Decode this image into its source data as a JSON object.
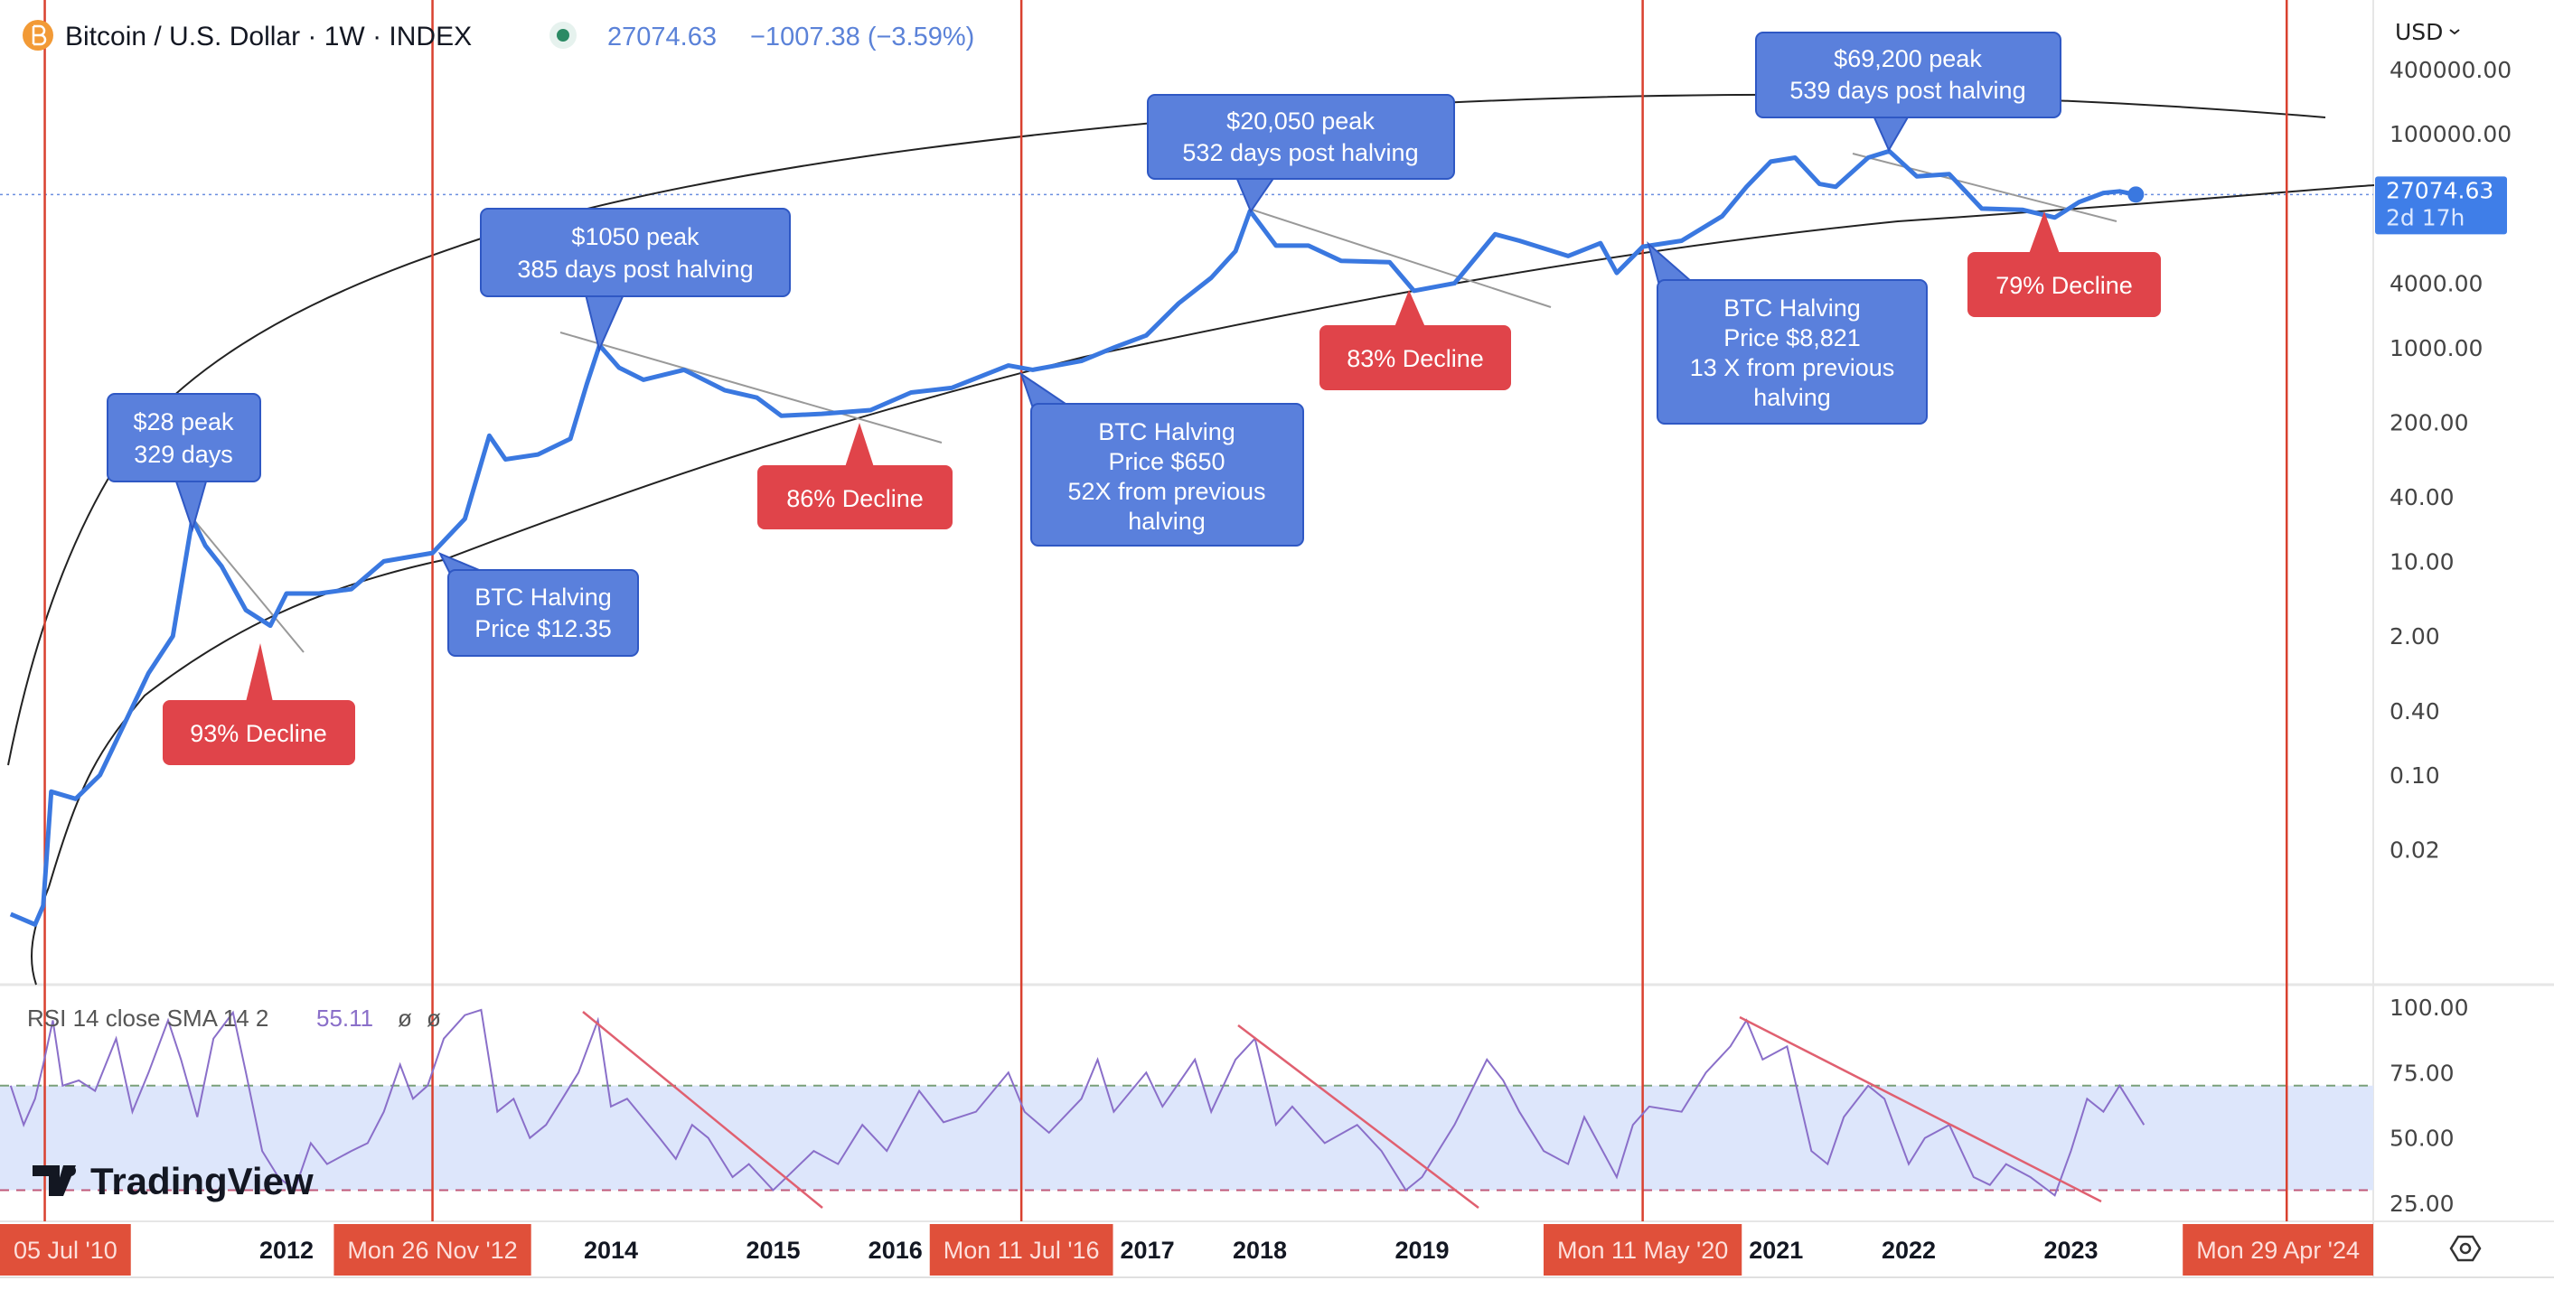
{
  "header": {
    "title": "Bitcoin / U.S. Dollar · 1W · INDEX",
    "last_price": "27074.63",
    "change": "−1007.38 (−3.59%)",
    "currency": "USD"
  },
  "price_tag": {
    "price": "27074.63",
    "countdown": "2d 17h"
  },
  "rsi_legend": {
    "label": "RSI 14 close SMA 14 2",
    "value": "55.11",
    "extra1": "ø",
    "extra2": "ø"
  },
  "logo": "TradingView",
  "colors": {
    "price_line": "#3a78e0",
    "annotation_blue": "#5a80dc",
    "annotation_red": "#e0444a",
    "halving_line": "#d9412f",
    "rsi_line": "#8a6fc9",
    "rsi_band": "#dde6fb"
  },
  "annotations": [
    {
      "type": "peak",
      "lines": [
        "$28 peak",
        "329 days"
      ]
    },
    {
      "type": "decline",
      "lines": [
        "93% Decline"
      ]
    },
    {
      "type": "halving",
      "lines": [
        "BTC Halving",
        "Price $12.35"
      ]
    },
    {
      "type": "peak",
      "lines": [
        "$1050 peak",
        "385 days post halving"
      ]
    },
    {
      "type": "decline",
      "lines": [
        "86% Decline"
      ]
    },
    {
      "type": "halving",
      "lines": [
        "BTC Halving",
        "Price $650",
        "52X from previous",
        "halving"
      ]
    },
    {
      "type": "peak",
      "lines": [
        "$20,050 peak",
        "532 days post halving"
      ]
    },
    {
      "type": "decline",
      "lines": [
        "83% Decline"
      ]
    },
    {
      "type": "halving",
      "lines": [
        "BTC Halving",
        "Price $8,821",
        "13 X from previous",
        "halving"
      ]
    },
    {
      "type": "peak",
      "lines": [
        "$69,200 peak",
        "539 days post halving"
      ]
    },
    {
      "type": "decline",
      "lines": [
        "79% Decline"
      ]
    }
  ],
  "chart_data": {
    "type": "line",
    "title": "Bitcoin / U.S. Dollar · 1W · INDEX",
    "yscale": "log",
    "ylim": [
      0.004,
      400000
    ],
    "y_ticks": [
      {
        "v": 400000,
        "label": "400000.00"
      },
      {
        "v": 100000,
        "label": "100000.00"
      },
      {
        "v": 4000,
        "label": "4000.00"
      },
      {
        "v": 1000,
        "label": "1000.00"
      },
      {
        "v": 200,
        "label": "200.00"
      },
      {
        "v": 40,
        "label": "40.00"
      },
      {
        "v": 10,
        "label": "10.00"
      },
      {
        "v": 2,
        "label": "2.00"
      },
      {
        "v": 0.4,
        "label": "0.40"
      },
      {
        "v": 0.1,
        "label": "0.10"
      },
      {
        "v": 0.02,
        "label": "0.02"
      }
    ],
    "x_ticks": [
      {
        "v": 2012,
        "label": "2012"
      },
      {
        "v": 2014,
        "label": "2014"
      },
      {
        "v": 2015,
        "label": "2015"
      },
      {
        "v": 2016,
        "label": "2016"
      },
      {
        "v": 2017,
        "label": "2017"
      },
      {
        "v": 2018,
        "label": "2018"
      },
      {
        "v": 2019,
        "label": "2019"
      },
      {
        "v": 2021,
        "label": "2021"
      },
      {
        "v": 2022,
        "label": "2022"
      },
      {
        "v": 2023,
        "label": "2023"
      }
    ],
    "halvings": [
      {
        "v": 2010.51,
        "label": "05 Jul '10"
      },
      {
        "v": 2012.9,
        "label": "Mon 26 Nov '12"
      },
      {
        "v": 2016.53,
        "label": "Mon 11 Jul '16"
      },
      {
        "v": 2020.36,
        "label": "Mon 11 May '20"
      },
      {
        "v": 2024.33,
        "label": "Mon 29 Apr '24"
      }
    ],
    "series": [
      {
        "name": "BTCUSD",
        "points": [
          [
            2010.3,
            0.005
          ],
          [
            2010.45,
            0.004
          ],
          [
            2010.5,
            0.006
          ],
          [
            2010.55,
            0.07
          ],
          [
            2010.7,
            0.06
          ],
          [
            2010.85,
            0.1
          ],
          [
            2011.0,
            0.3
          ],
          [
            2011.15,
            0.9
          ],
          [
            2011.3,
            2
          ],
          [
            2011.42,
            25
          ],
          [
            2011.5,
            14
          ],
          [
            2011.6,
            9
          ],
          [
            2011.75,
            3.5
          ],
          [
            2011.9,
            2.5
          ],
          [
            2012.0,
            5
          ],
          [
            2012.2,
            5
          ],
          [
            2012.4,
            5.5
          ],
          [
            2012.6,
            10
          ],
          [
            2012.9,
            12
          ],
          [
            2013.1,
            25
          ],
          [
            2013.25,
            150
          ],
          [
            2013.35,
            90
          ],
          [
            2013.55,
            100
          ],
          [
            2013.75,
            140
          ],
          [
            2013.85,
            450
          ],
          [
            2013.93,
            1050
          ],
          [
            2014.05,
            650
          ],
          [
            2014.2,
            500
          ],
          [
            2014.45,
            620
          ],
          [
            2014.7,
            400
          ],
          [
            2014.9,
            340
          ],
          [
            2015.05,
            230
          ],
          [
            2015.3,
            240
          ],
          [
            2015.6,
            260
          ],
          [
            2015.85,
            380
          ],
          [
            2016.1,
            420
          ],
          [
            2016.45,
            680
          ],
          [
            2016.6,
            620
          ],
          [
            2016.9,
            750
          ],
          [
            2017.1,
            1000
          ],
          [
            2017.3,
            1300
          ],
          [
            2017.5,
            2600
          ],
          [
            2017.7,
            4500
          ],
          [
            2017.85,
            8000
          ],
          [
            2017.94,
            19000
          ],
          [
            2018.1,
            9000
          ],
          [
            2018.3,
            9000
          ],
          [
            2018.5,
            6500
          ],
          [
            2018.8,
            6300
          ],
          [
            2018.95,
            3400
          ],
          [
            2019.2,
            4000
          ],
          [
            2019.45,
            11500
          ],
          [
            2019.6,
            10000
          ],
          [
            2019.9,
            7200
          ],
          [
            2020.1,
            9500
          ],
          [
            2020.2,
            5000
          ],
          [
            2020.36,
            8800
          ],
          [
            2020.6,
            10000
          ],
          [
            2020.85,
            17000
          ],
          [
            2021.0,
            32000
          ],
          [
            2021.15,
            55000
          ],
          [
            2021.3,
            60000
          ],
          [
            2021.45,
            34000
          ],
          [
            2021.55,
            32000
          ],
          [
            2021.75,
            60000
          ],
          [
            2021.88,
            69000
          ],
          [
            2022.05,
            40000
          ],
          [
            2022.25,
            42000
          ],
          [
            2022.45,
            20000
          ],
          [
            2022.7,
            19500
          ],
          [
            2022.9,
            16500
          ],
          [
            2023.05,
            23000
          ],
          [
            2023.2,
            28000
          ],
          [
            2023.3,
            29000
          ],
          [
            2023.4,
            27074.63
          ]
        ]
      }
    ],
    "rsi": {
      "ylim": [
        20,
        100
      ],
      "y_ticks": [
        {
          "v": 100,
          "label": "100.00"
        },
        {
          "v": 75,
          "label": "75.00"
        },
        {
          "v": 50,
          "label": "50.00"
        },
        {
          "v": 25,
          "label": "25.00"
        }
      ],
      "band": [
        30,
        70
      ],
      "points": [
        [
          2010.3,
          70
        ],
        [
          2010.38,
          55
        ],
        [
          2010.45,
          65
        ],
        [
          2010.5,
          78
        ],
        [
          2010.56,
          95
        ],
        [
          2010.62,
          70
        ],
        [
          2010.72,
          72
        ],
        [
          2010.82,
          68
        ],
        [
          2010.95,
          88
        ],
        [
          2011.05,
          60
        ],
        [
          2011.15,
          75
        ],
        [
          2011.27,
          95
        ],
        [
          2011.35,
          80
        ],
        [
          2011.45,
          58
        ],
        [
          2011.55,
          88
        ],
        [
          2011.67,
          98
        ],
        [
          2011.75,
          75
        ],
        [
          2011.85,
          45
        ],
        [
          2011.95,
          35
        ],
        [
          2012.05,
          30
        ],
        [
          2012.15,
          48
        ],
        [
          2012.25,
          40
        ],
        [
          2012.4,
          45
        ],
        [
          2012.5,
          48
        ],
        [
          2012.6,
          60
        ],
        [
          2012.7,
          78
        ],
        [
          2012.78,
          65
        ],
        [
          2012.87,
          70
        ],
        [
          2012.97,
          88
        ],
        [
          2013.1,
          97
        ],
        [
          2013.2,
          99
        ],
        [
          2013.3,
          60
        ],
        [
          2013.4,
          65
        ],
        [
          2013.5,
          50
        ],
        [
          2013.6,
          55
        ],
        [
          2013.7,
          65
        ],
        [
          2013.8,
          75
        ],
        [
          2013.92,
          95
        ],
        [
          2014.0,
          62
        ],
        [
          2014.1,
          65
        ],
        [
          2014.3,
          50
        ],
        [
          2014.4,
          42
        ],
        [
          2014.5,
          55
        ],
        [
          2014.6,
          50
        ],
        [
          2014.75,
          35
        ],
        [
          2014.85,
          40
        ],
        [
          2015.0,
          30
        ],
        [
          2015.1,
          36
        ],
        [
          2015.25,
          45
        ],
        [
          2015.4,
          40
        ],
        [
          2015.55,
          55
        ],
        [
          2015.7,
          45
        ],
        [
          2015.9,
          68
        ],
        [
          2016.05,
          56
        ],
        [
          2016.25,
          60
        ],
        [
          2016.45,
          75
        ],
        [
          2016.55,
          60
        ],
        [
          2016.7,
          52
        ],
        [
          2016.9,
          65
        ],
        [
          2017.0,
          80
        ],
        [
          2017.1,
          60
        ],
        [
          2017.3,
          75
        ],
        [
          2017.4,
          62
        ],
        [
          2017.6,
          80
        ],
        [
          2017.7,
          60
        ],
        [
          2017.85,
          80
        ],
        [
          2017.97,
          88
        ],
        [
          2018.1,
          55
        ],
        [
          2018.2,
          62
        ],
        [
          2018.4,
          48
        ],
        [
          2018.6,
          55
        ],
        [
          2018.75,
          45
        ],
        [
          2018.9,
          30
        ],
        [
          2019.0,
          35
        ],
        [
          2019.2,
          55
        ],
        [
          2019.4,
          80
        ],
        [
          2019.5,
          72
        ],
        [
          2019.6,
          60
        ],
        [
          2019.75,
          45
        ],
        [
          2019.9,
          40
        ],
        [
          2020.0,
          58
        ],
        [
          2020.2,
          35
        ],
        [
          2020.3,
          55
        ],
        [
          2020.4,
          62
        ],
        [
          2020.6,
          60
        ],
        [
          2020.75,
          75
        ],
        [
          2020.9,
          85
        ],
        [
          2021.0,
          95
        ],
        [
          2021.1,
          80
        ],
        [
          2021.25,
          85
        ],
        [
          2021.4,
          45
        ],
        [
          2021.5,
          40
        ],
        [
          2021.6,
          58
        ],
        [
          2021.75,
          70
        ],
        [
          2021.85,
          65
        ],
        [
          2022.0,
          40
        ],
        [
          2022.1,
          50
        ],
        [
          2022.25,
          55
        ],
        [
          2022.4,
          35
        ],
        [
          2022.5,
          32
        ],
        [
          2022.6,
          40
        ],
        [
          2022.75,
          35
        ],
        [
          2022.9,
          28
        ],
        [
          2023.0,
          45
        ],
        [
          2023.1,
          65
        ],
        [
          2023.2,
          60
        ],
        [
          2023.3,
          70
        ],
        [
          2023.4,
          60
        ],
        [
          2023.45,
          55
        ]
      ]
    }
  }
}
